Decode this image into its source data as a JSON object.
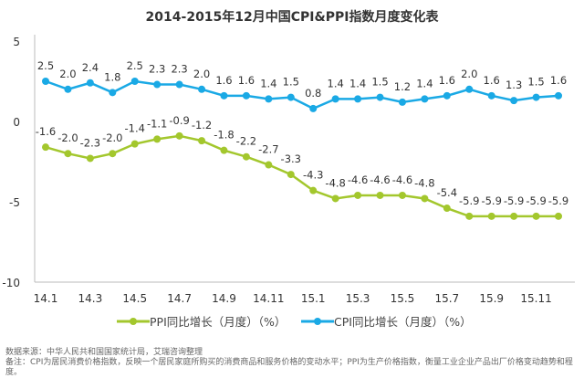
{
  "chart_data": {
    "type": "line",
    "title": "2014-2015年12月中国CPI&PPI指数月度变化表",
    "x": [
      "14.1",
      "14.2",
      "14.3",
      "14.4",
      "14.5",
      "14.6",
      "14.7",
      "14.8",
      "14.9",
      "14.10",
      "14.11",
      "14.12",
      "15.1",
      "15.2",
      "15.3",
      "15.4",
      "15.5",
      "15.6",
      "15.7",
      "15.8",
      "15.9",
      "15.10",
      "15.11",
      "15.12"
    ],
    "xtick_labels": [
      "14.1",
      "14.3",
      "14.5",
      "14.7",
      "14.9",
      "14.11",
      "15.1",
      "15.3",
      "15.5",
      "15.7",
      "15.9",
      "15.11"
    ],
    "ylim": [
      -10,
      5
    ],
    "yticks": [
      5,
      0,
      -5,
      -10
    ],
    "grid": false,
    "legend_position": "bottom",
    "series": [
      {
        "name": "PPI同比增长（月度）（%）",
        "color": "#a3c72d",
        "values": [
          -1.6,
          -2.0,
          -2.3,
          -2.0,
          -1.4,
          -1.1,
          -0.9,
          -1.2,
          -1.8,
          -2.2,
          -2.7,
          -3.3,
          -4.3,
          -4.8,
          -4.6,
          -4.6,
          -4.6,
          -4.8,
          -5.4,
          -5.9,
          -5.9,
          -5.9,
          -5.9,
          -5.9
        ]
      },
      {
        "name": "CPI同比增长（月度）（%）",
        "color": "#1aa9e5",
        "values": [
          2.5,
          2.0,
          2.4,
          1.8,
          2.5,
          2.3,
          2.3,
          2.0,
          1.6,
          1.6,
          1.4,
          1.5,
          0.8,
          1.4,
          1.4,
          1.5,
          1.2,
          1.4,
          1.6,
          2.0,
          1.6,
          1.3,
          1.5,
          1.6
        ]
      }
    ]
  },
  "notes": {
    "source": "数据来源：中华人民共和国国家统计局，艾瑞咨询整理",
    "remark": "备注：CPI为居民消费价格指数，反映一个居民家庭所购买的消费商品和服务价格的变动水平；PPI为生产价格指数，衡量工业企业产品出厂价格变动趋势和程度。"
  }
}
